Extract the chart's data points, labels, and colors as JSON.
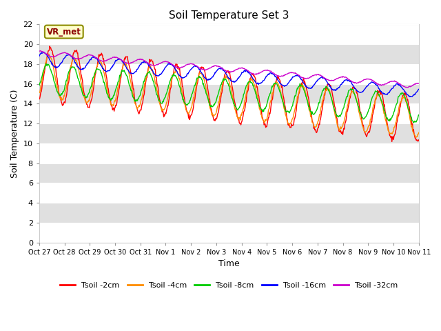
{
  "title": "Soil Temperature Set 3",
  "xlabel": "Time",
  "ylabel": "Soil Temperature (C)",
  "ylim": [
    0,
    22
  ],
  "yticks": [
    0,
    2,
    4,
    6,
    8,
    10,
    12,
    14,
    16,
    18,
    20,
    22
  ],
  "xtick_labels": [
    "Oct 27",
    "Oct 28",
    "Oct 29",
    "Oct 30",
    "Oct 31",
    "Nov 1",
    "Nov 2",
    "Nov 3",
    "Nov 4",
    "Nov 5",
    "Nov 6",
    "Nov 7",
    "Nov 8",
    "Nov 9",
    "Nov 10",
    "Nov 11"
  ],
  "colors": {
    "tsoil_2cm": "#ff0000",
    "tsoil_4cm": "#ff8c00",
    "tsoil_8cm": "#00cc00",
    "tsoil_16cm": "#0000ff",
    "tsoil_32cm": "#cc00cc"
  },
  "legend_labels": [
    "Tsoil -2cm",
    "Tsoil -4cm",
    "Tsoil -8cm",
    "Tsoil -16cm",
    "Tsoil -32cm"
  ],
  "annotation_text": "VR_met",
  "band_colors": [
    "#ffffff",
    "#e0e0e0"
  ],
  "fig_bg": "#ffffff",
  "days": 15
}
